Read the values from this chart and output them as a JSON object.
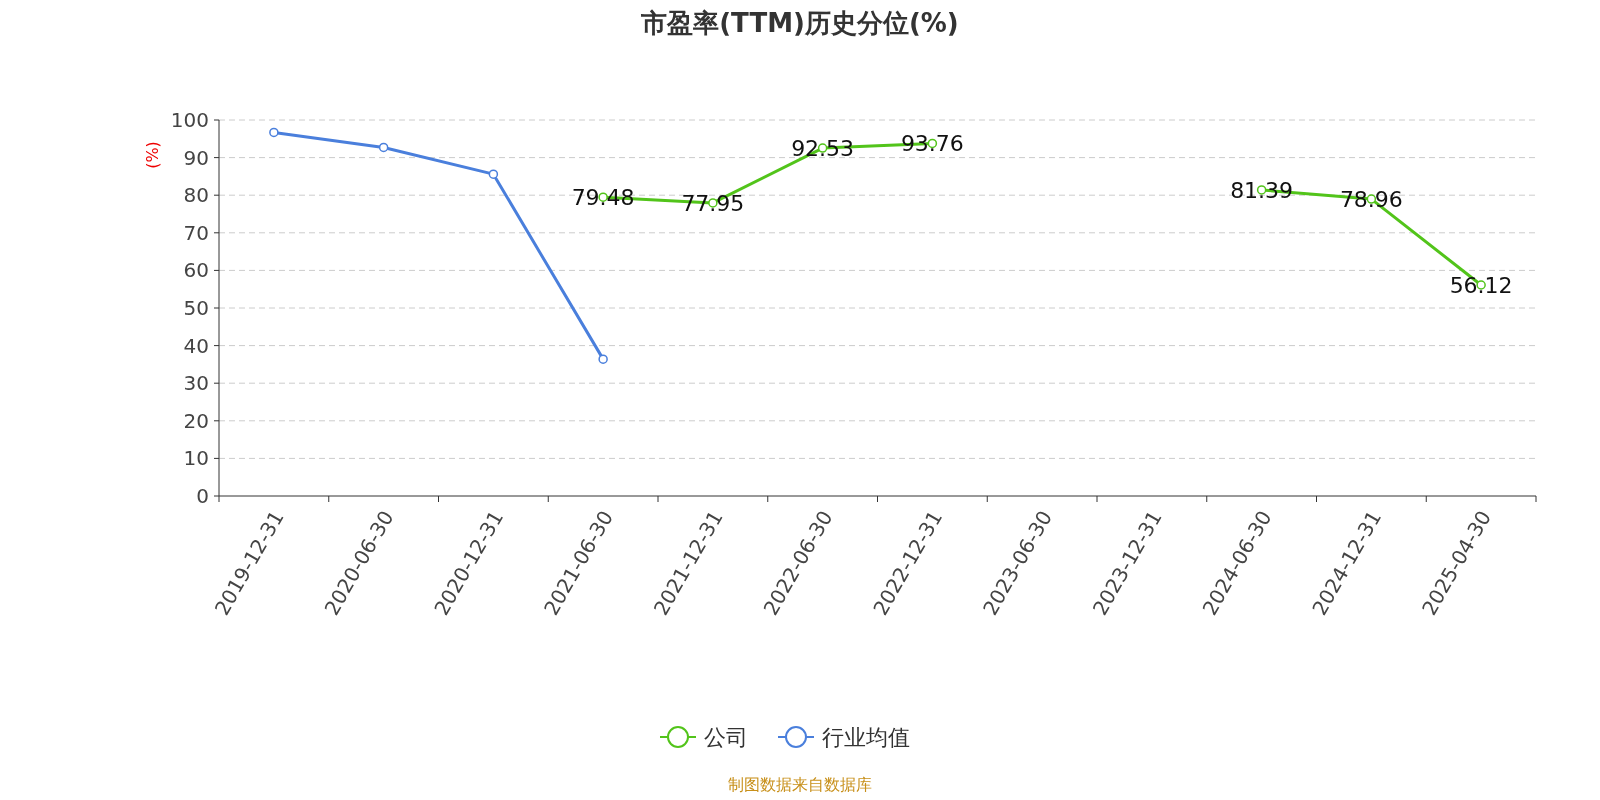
{
  "chart_data": {
    "type": "line",
    "title": "市盈率(TTM)历史分位(%)",
    "ylabel": "(%)",
    "categories": [
      "2019-12-31",
      "2020-06-30",
      "2020-12-31",
      "2021-06-30",
      "2021-12-31",
      "2022-06-30",
      "2022-12-31",
      "2023-06-30",
      "2023-12-31",
      "2024-06-30",
      "2024-12-31",
      "2025-04-30"
    ],
    "series": [
      {
        "name": "公司",
        "color": "#52c41a",
        "values": [
          null,
          null,
          null,
          79.48,
          77.95,
          92.53,
          93.76,
          null,
          null,
          81.39,
          78.96,
          56.12
        ],
        "value_labels": [
          null,
          null,
          null,
          "79.48",
          "77.95",
          "92.53",
          "93.76",
          null,
          null,
          "81.39",
          "78.96",
          "56.12"
        ]
      },
      {
        "name": "行业均值",
        "color": "#4a7fdc",
        "values": [
          96.7,
          92.7,
          85.6,
          36.4,
          null,
          null,
          null,
          null,
          null,
          null,
          null,
          null
        ]
      }
    ],
    "ylim": [
      0,
      100
    ],
    "yticks": [
      0,
      10,
      20,
      30,
      40,
      50,
      60,
      70,
      80,
      90,
      100
    ],
    "grid": "y",
    "legend": "bottom",
    "marker": "circle",
    "line_style": "solid",
    "annotations": [
      "制图数据来自数据库"
    ]
  }
}
